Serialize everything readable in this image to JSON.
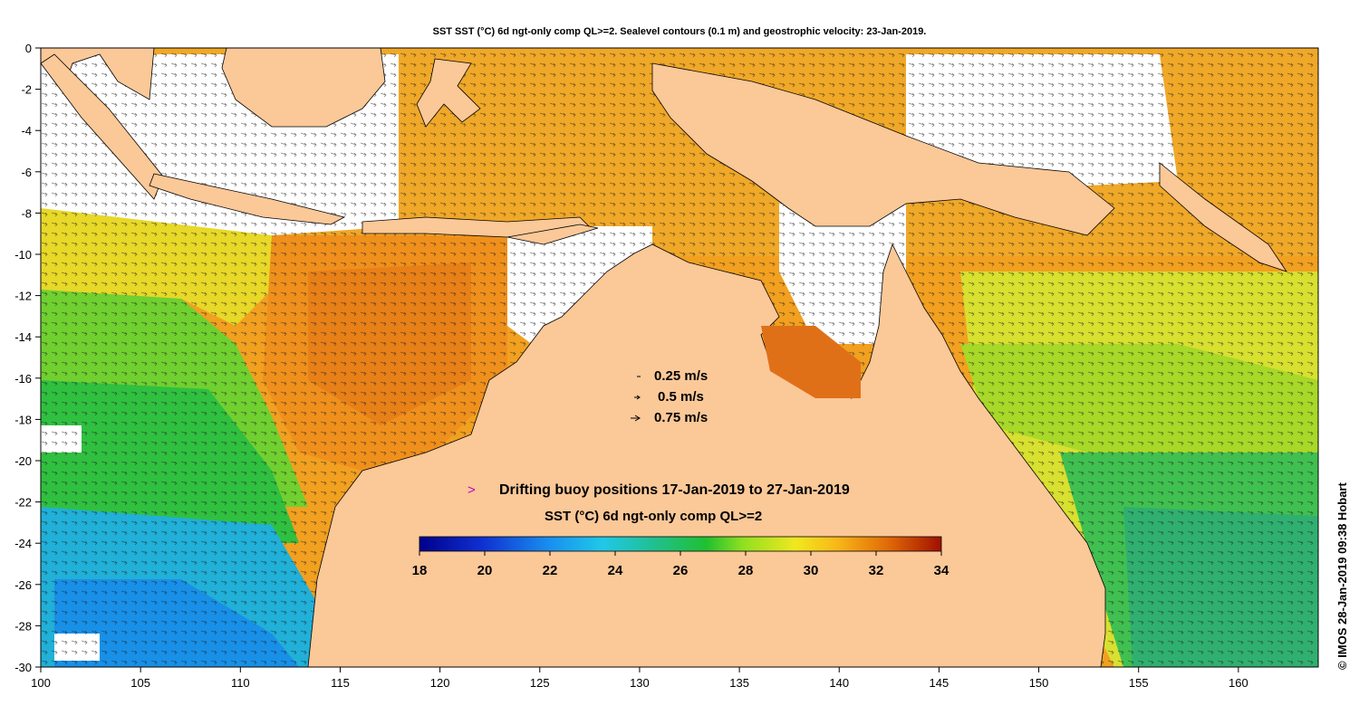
{
  "header": {
    "title": "SST SST (°C) 6d ngt-only comp QL>=2. Sealevel contours (0.1 m) and geostrophic velocity: 23-Jan-2019."
  },
  "axes": {
    "x_ticks": [
      "100",
      "105",
      "110",
      "115",
      "120",
      "125",
      "130",
      "135",
      "140",
      "145",
      "150",
      "155",
      "160"
    ],
    "y_ticks": [
      "0",
      "-2",
      "-4",
      "-6",
      "-8",
      "-10",
      "-12",
      "-14",
      "-16",
      "-18",
      "-20",
      "-22",
      "-24",
      "-26",
      "-28",
      "-30"
    ]
  },
  "velocity_legend": {
    "items": [
      "0.25 m/s",
      "0.5 m/s",
      "0.75 m/s"
    ]
  },
  "buoy_legend": {
    "marker": ">",
    "label": "Drifting buoy positions 17-Jan-2019 to 27-Jan-2019"
  },
  "colorbar": {
    "title": "SST (°C) 6d ngt-only comp QL>=2",
    "ticks": [
      "18",
      "20",
      "22",
      "24",
      "26",
      "28",
      "30",
      "32",
      "34"
    ],
    "range": [
      18,
      34
    ]
  },
  "credit": "© IMOS 28-Jan-2019 09:38 Hobart",
  "colors": {
    "land": "#fbc898",
    "ocean_warm": "#f2a020",
    "ocean_mid": "#e8e020",
    "ocean_cool": "#30c040",
    "ocean_cold": "#20b8e0",
    "no_data": "#ffffff",
    "buoy_marker": "#c000c0"
  }
}
